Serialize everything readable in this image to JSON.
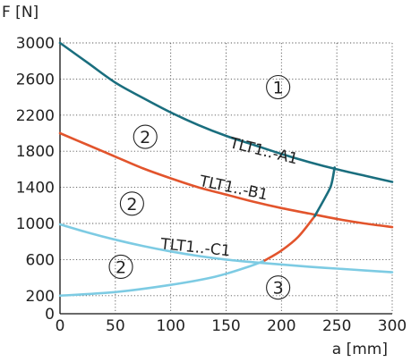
{
  "chart_data": {
    "type": "line",
    "title": "",
    "xlabel": "a [mm]",
    "ylabel": "F [N]",
    "xlim": [
      0,
      300
    ],
    "ylim": [
      0,
      3000
    ],
    "x_ticks": [
      0,
      50,
      100,
      150,
      200,
      250,
      300
    ],
    "y_ticks": [
      0,
      200,
      600,
      1000,
      1400,
      1800,
      2200,
      2600,
      3000
    ],
    "x_grid": [
      0,
      50,
      100,
      150,
      200,
      250,
      300
    ],
    "y_grid": [
      200,
      600,
      1000,
      1400,
      1800,
      2200,
      2600,
      3000
    ],
    "grid": true,
    "grid_style": "dotted",
    "series": [
      {
        "name": "TLT1..-A1",
        "color": "#1a6e7e",
        "x": [
          0,
          25,
          50,
          75,
          100,
          125,
          150,
          175,
          200,
          225,
          250,
          275,
          300
        ],
        "y": [
          3000,
          2780,
          2560,
          2390,
          2230,
          2090,
          1970,
          1870,
          1770,
          1680,
          1600,
          1530,
          1460
        ]
      },
      {
        "name": "TLT1..-B1",
        "color": "#e2542c",
        "x": [
          0,
          25,
          50,
          75,
          100,
          125,
          150,
          175,
          200,
          225,
          250,
          275,
          300
        ],
        "y": [
          2000,
          1870,
          1740,
          1610,
          1500,
          1400,
          1320,
          1240,
          1170,
          1110,
          1050,
          1000,
          960
        ]
      },
      {
        "name": "TLT1..-C1",
        "color": "#7dcbe3",
        "x": [
          0,
          25,
          50,
          75,
          100,
          125,
          150,
          175,
          200,
          225,
          250,
          275,
          300
        ],
        "y": [
          990,
          900,
          820,
          750,
          690,
          640,
          600,
          570,
          545,
          520,
          500,
          480,
          460
        ]
      }
    ],
    "boundary_curve": {
      "x": [
        0,
        50,
        100,
        140,
        170,
        185,
        200,
        215,
        230,
        240,
        245,
        248
      ],
      "y": [
        200,
        240,
        320,
        410,
        520,
        590,
        700,
        850,
        1080,
        1300,
        1430,
        1620
      ],
      "segments": [
        {
          "color": "#7dcbe3",
          "until_index": 5
        },
        {
          "color": "#e2542c",
          "until_index": 8
        },
        {
          "color": "#1a6e7e",
          "until_index": 11
        }
      ]
    },
    "curve_labels": [
      {
        "text": "TLT1..-A1",
        "x": 183,
        "y": 1750,
        "angle": 14
      },
      {
        "text": "TLT1..-B1",
        "x": 156,
        "y": 1340,
        "angle": 12
      },
      {
        "text": "TLT1..-C1",
        "x": 122,
        "y": 680,
        "angle": 6
      }
    ],
    "regions": [
      {
        "text": "1",
        "x": 197,
        "y": 2510
      },
      {
        "text": "2",
        "x": 77,
        "y": 1960
      },
      {
        "text": "2",
        "x": 65,
        "y": 1220
      },
      {
        "text": "2",
        "x": 55,
        "y": 520
      },
      {
        "text": "3",
        "x": 197,
        "y": 290
      }
    ]
  }
}
